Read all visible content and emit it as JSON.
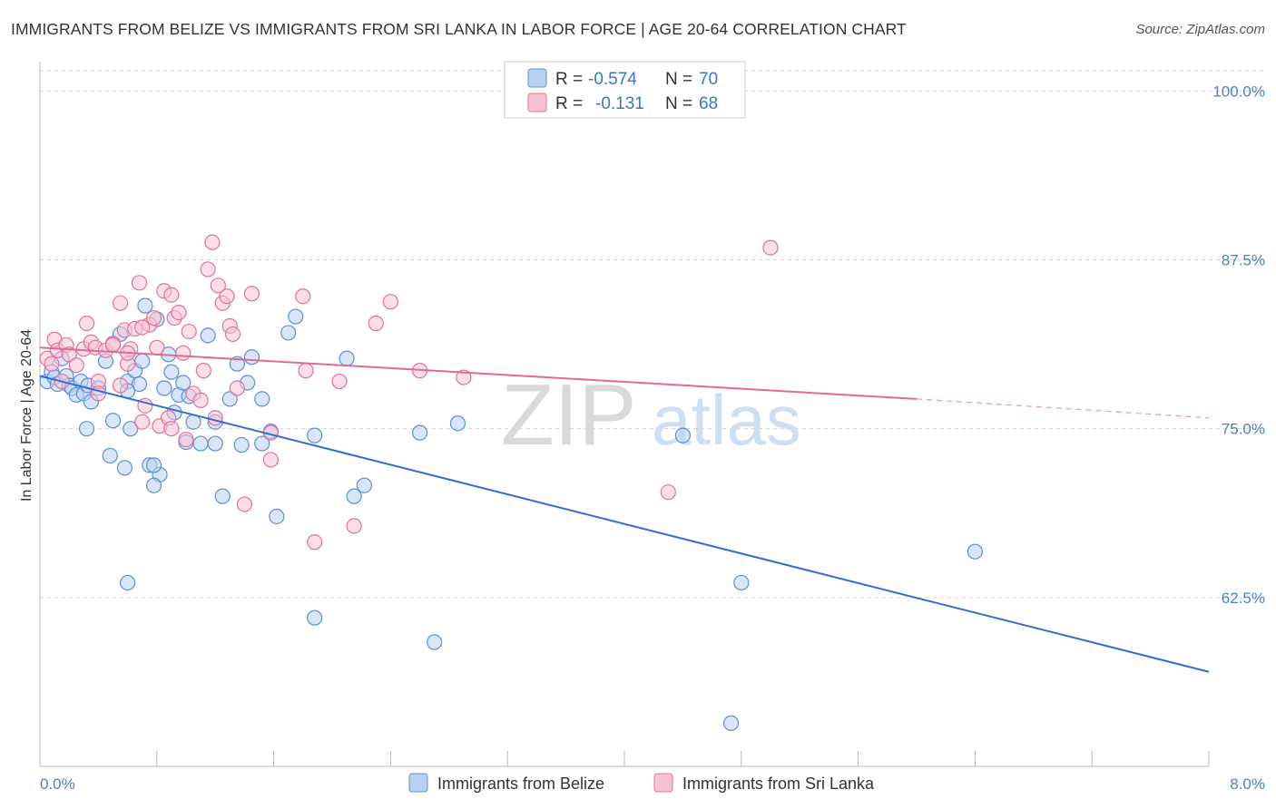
{
  "chart_data": {
    "type": "scatter",
    "title": "IMMIGRANTS FROM BELIZE VS IMMIGRANTS FROM SRI LANKA IN LABOR FORCE | AGE 20-64 CORRELATION CHART",
    "source": "Source: ZipAtlas.com",
    "ylabel": "In Labor Force | Age 20-64",
    "xlabel": "",
    "xlim": [
      0.0,
      8.0
    ],
    "ylim": [
      50.0,
      101.5
    ],
    "x_tick_labels": [
      "0.0%",
      "8.0%"
    ],
    "y_ticks": [
      {
        "value": 100.0,
        "label": "100.0%"
      },
      {
        "value": 87.5,
        "label": "87.5%"
      },
      {
        "value": 75.0,
        "label": "75.0%"
      },
      {
        "value": 62.5,
        "label": "62.5%"
      }
    ],
    "watermark": {
      "zip": "ZIP",
      "atlas": "atlas"
    },
    "legend": {
      "r_label": "R =",
      "n_label": "N =",
      "entries": [
        {
          "r": "-0.574",
          "n": "70"
        },
        {
          "r": "-0.131",
          "n": "68"
        }
      ]
    },
    "series": [
      {
        "name": "Immigrants from Belize",
        "color": "#5b8fd9",
        "fill": "#b9d1f3",
        "trend": {
          "x0": 0.0,
          "y0": 78.9,
          "x1": 8.0,
          "y1": 57.0
        },
        "points": [
          [
            0.05,
            78.5
          ],
          [
            0.08,
            79.2
          ],
          [
            0.1,
            78.8
          ],
          [
            0.12,
            78.3
          ],
          [
            0.15,
            80.2
          ],
          [
            0.18,
            78.9
          ],
          [
            0.2,
            78.2
          ],
          [
            0.22,
            78.0
          ],
          [
            0.25,
            77.5
          ],
          [
            0.28,
            78.5
          ],
          [
            0.3,
            77.6
          ],
          [
            0.33,
            78.2
          ],
          [
            0.35,
            77.0
          ],
          [
            0.4,
            78.0
          ],
          [
            0.45,
            80.0
          ],
          [
            0.5,
            75.6
          ],
          [
            0.55,
            82.0
          ],
          [
            0.6,
            78.5
          ],
          [
            0.62,
            75.0
          ],
          [
            0.65,
            79.3
          ],
          [
            0.68,
            78.3
          ],
          [
            0.7,
            80.0
          ],
          [
            0.72,
            84.1
          ],
          [
            0.75,
            72.3
          ],
          [
            0.8,
            83.1
          ],
          [
            0.82,
            71.6
          ],
          [
            0.85,
            78.0
          ],
          [
            0.88,
            80.5
          ],
          [
            0.9,
            79.2
          ],
          [
            0.92,
            76.2
          ],
          [
            0.95,
            77.5
          ],
          [
            0.98,
            78.4
          ],
          [
            1.0,
            74.0
          ],
          [
            1.02,
            77.4
          ],
          [
            1.05,
            75.5
          ],
          [
            1.1,
            73.9
          ],
          [
            1.15,
            81.9
          ],
          [
            1.2,
            73.9
          ],
          [
            1.25,
            70.0
          ],
          [
            1.3,
            77.2
          ],
          [
            1.35,
            79.8
          ],
          [
            1.38,
            73.8
          ],
          [
            1.42,
            78.4
          ],
          [
            1.45,
            80.3
          ],
          [
            1.52,
            73.9
          ],
          [
            1.58,
            74.8
          ],
          [
            1.62,
            68.5
          ],
          [
            1.7,
            82.1
          ],
          [
            1.75,
            83.3
          ],
          [
            1.88,
            74.5
          ],
          [
            2.1,
            80.2
          ],
          [
            2.15,
            70.0
          ],
          [
            2.22,
            70.8
          ],
          [
            2.6,
            74.7
          ],
          [
            2.86,
            75.4
          ],
          [
            4.4,
            74.5
          ],
          [
            6.4,
            65.9
          ],
          [
            0.6,
            63.6
          ],
          [
            0.32,
            75.0
          ],
          [
            0.48,
            73.0
          ],
          [
            0.58,
            72.1
          ],
          [
            0.78,
            72.3
          ],
          [
            1.52,
            77.2
          ],
          [
            1.88,
            61.0
          ],
          [
            2.7,
            59.2
          ],
          [
            4.8,
            63.6
          ],
          [
            4.73,
            53.2
          ],
          [
            0.78,
            70.8
          ],
          [
            1.2,
            75.5
          ],
          [
            0.6,
            77.8
          ]
        ]
      },
      {
        "name": "Immigrants from Sri Lanka",
        "color": "#e0739a",
        "fill": "#f7c3d4",
        "trend": {
          "x0": 0.0,
          "y0": 81.0,
          "x1": 6.0,
          "y1": 77.2,
          "dash_x1": 8.0,
          "dash_y1": 75.8
        },
        "points": [
          [
            0.05,
            80.2
          ],
          [
            0.08,
            79.8
          ],
          [
            0.1,
            81.6
          ],
          [
            0.12,
            80.8
          ],
          [
            0.15,
            78.5
          ],
          [
            0.18,
            81.2
          ],
          [
            0.2,
            80.5
          ],
          [
            0.25,
            79.7
          ],
          [
            0.3,
            80.9
          ],
          [
            0.32,
            82.8
          ],
          [
            0.35,
            81.4
          ],
          [
            0.38,
            81.0
          ],
          [
            0.4,
            78.5
          ],
          [
            0.45,
            80.8
          ],
          [
            0.5,
            81.3
          ],
          [
            0.55,
            84.3
          ],
          [
            0.58,
            82.3
          ],
          [
            0.6,
            79.8
          ],
          [
            0.62,
            80.9
          ],
          [
            0.65,
            82.4
          ],
          [
            0.68,
            85.8
          ],
          [
            0.7,
            75.5
          ],
          [
            0.72,
            76.7
          ],
          [
            0.75,
            82.7
          ],
          [
            0.78,
            83.2
          ],
          [
            0.8,
            81.0
          ],
          [
            0.82,
            75.2
          ],
          [
            0.85,
            85.2
          ],
          [
            0.88,
            75.8
          ],
          [
            0.9,
            84.9
          ],
          [
            0.92,
            83.2
          ],
          [
            0.95,
            83.6
          ],
          [
            0.98,
            80.6
          ],
          [
            1.0,
            74.2
          ],
          [
            1.02,
            82.2
          ],
          [
            1.05,
            77.6
          ],
          [
            1.1,
            77.1
          ],
          [
            1.12,
            79.3
          ],
          [
            1.15,
            86.8
          ],
          [
            1.18,
            88.8
          ],
          [
            1.2,
            75.8
          ],
          [
            1.22,
            85.6
          ],
          [
            1.25,
            84.3
          ],
          [
            1.28,
            84.8
          ],
          [
            1.3,
            82.6
          ],
          [
            1.32,
            82.0
          ],
          [
            1.35,
            78.0
          ],
          [
            1.4,
            69.4
          ],
          [
            1.45,
            85.0
          ],
          [
            1.58,
            72.7
          ],
          [
            1.58,
            74.7
          ],
          [
            1.8,
            84.8
          ],
          [
            1.82,
            79.3
          ],
          [
            1.88,
            66.6
          ],
          [
            2.05,
            78.5
          ],
          [
            2.15,
            67.8
          ],
          [
            2.3,
            82.8
          ],
          [
            2.4,
            84.4
          ],
          [
            2.6,
            79.3
          ],
          [
            2.9,
            78.8
          ],
          [
            4.3,
            70.3
          ],
          [
            5.0,
            88.4
          ],
          [
            0.4,
            77.6
          ],
          [
            0.9,
            75.0
          ],
          [
            0.55,
            78.2
          ],
          [
            0.5,
            81.2
          ],
          [
            0.7,
            82.5
          ],
          [
            0.6,
            80.6
          ]
        ]
      }
    ]
  }
}
